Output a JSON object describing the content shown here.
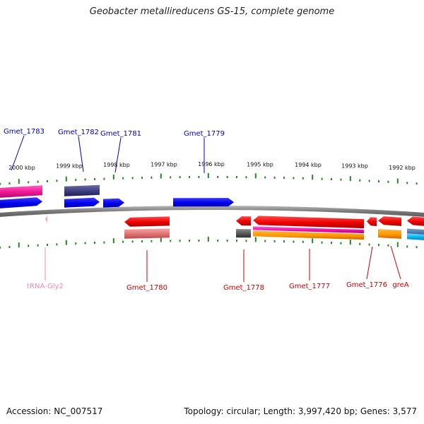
{
  "title": "Geobacter metallireducens GS-15, complete genome",
  "accession_label": "Accession: NC_007517",
  "topology_label": "Topology: circular; Length: 3,997,420 bp; Genes: 3,577",
  "colors": {
    "forward_label": "#0000bb",
    "reverse_label": "#cc0000",
    "trna_label": "#ee88bb",
    "tick": "#228822",
    "backbone": "#808080"
  },
  "kbp_ticks": [
    {
      "label": "2000 kbp"
    },
    {
      "label": "1999 kbp"
    },
    {
      "label": "1998 kbp"
    },
    {
      "label": "1997 kbp"
    },
    {
      "label": "1996 kbp"
    },
    {
      "label": "1995 kbp"
    },
    {
      "label": "1994 kbp"
    },
    {
      "label": "1993 kbp"
    },
    {
      "label": "1992 kbp"
    }
  ],
  "gene_labels_top": [
    {
      "name": "Gmet_1783",
      "strand": "forward"
    },
    {
      "name": "Gmet_1782",
      "strand": "forward"
    },
    {
      "name": "Gmet_1781",
      "strand": "forward"
    },
    {
      "name": "Gmet_1779",
      "strand": "forward"
    }
  ],
  "gene_labels_bottom": [
    {
      "name": "tRNA-Gly2",
      "strand": "trna"
    },
    {
      "name": "Gmet_1780",
      "strand": "reverse"
    },
    {
      "name": "Gmet_1778",
      "strand": "reverse"
    },
    {
      "name": "Gmet_1777",
      "strand": "reverse"
    },
    {
      "name": "Gmet_1776",
      "strand": "reverse"
    },
    {
      "name": "greA",
      "strand": "reverse"
    }
  ]
}
